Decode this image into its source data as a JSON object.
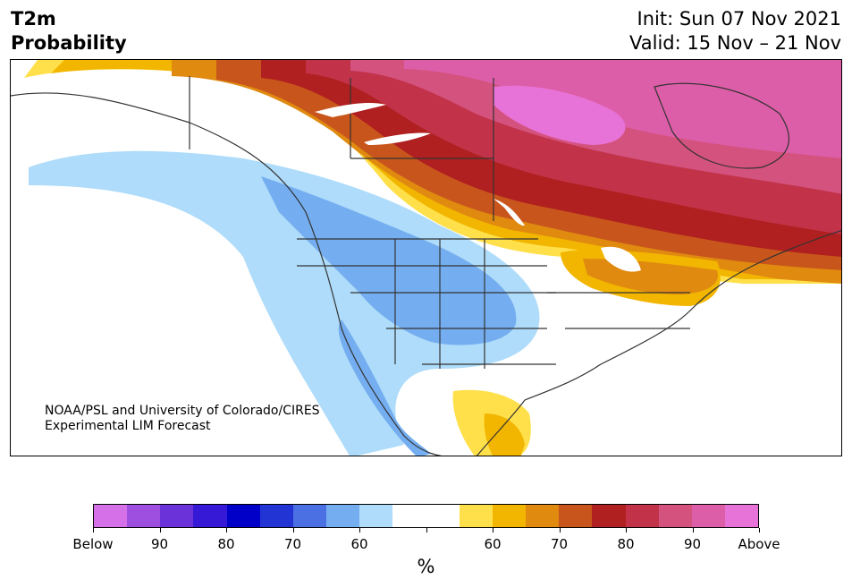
{
  "header": {
    "variable": "T2m",
    "product": "Probability",
    "init": "Init: Sun 07 Nov 2021",
    "valid": "Valid: 15 Nov – 21 Nov"
  },
  "credit": {
    "line1": "NOAA/PSL and University of Colorado/CIRES",
    "line2": "Experimental LIM Forecast"
  },
  "colorbar": {
    "colors": [
      "#d670e8",
      "#9e4fdf",
      "#6a32d8",
      "#3519d6",
      "#0000c8",
      "#2235d4",
      "#4b70e3",
      "#75aef0",
      "#aedcfa",
      "#ffffff",
      "#ffffff",
      "#ffe04b",
      "#f2b600",
      "#e08a10",
      "#c8561c",
      "#b02020",
      "#c2334a",
      "#d4527e",
      "#dd5ea8",
      "#e873d8"
    ],
    "tick_labels": [
      "Below",
      "90",
      "80",
      "70",
      "60",
      "",
      "60",
      "70",
      "80",
      "90",
      "Above"
    ],
    "units": "%"
  },
  "legend_meaning": {
    "purple_blue": "probability of below-normal 2m temperature",
    "yellow_red_magenta": "probability of above-normal 2m temperature"
  }
}
